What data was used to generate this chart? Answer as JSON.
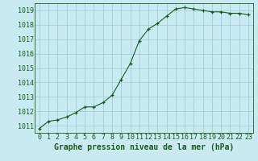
{
  "x": [
    0,
    1,
    2,
    3,
    4,
    5,
    6,
    7,
    8,
    9,
    10,
    11,
    12,
    13,
    14,
    15,
    16,
    17,
    18,
    19,
    20,
    21,
    22,
    23
  ],
  "y": [
    1010.8,
    1011.3,
    1011.4,
    1011.6,
    1011.9,
    1012.3,
    1012.3,
    1012.6,
    1013.1,
    1014.2,
    1015.3,
    1016.9,
    1017.7,
    1018.1,
    1018.6,
    1019.1,
    1019.2,
    1019.1,
    1019.0,
    1018.9,
    1018.9,
    1018.8,
    1018.8,
    1018.7
  ],
  "xlim": [
    -0.5,
    23.5
  ],
  "ylim": [
    1010.5,
    1019.5
  ],
  "yticks": [
    1011,
    1012,
    1013,
    1014,
    1015,
    1016,
    1017,
    1018,
    1019
  ],
  "xticks": [
    0,
    1,
    2,
    3,
    4,
    5,
    6,
    7,
    8,
    9,
    10,
    11,
    12,
    13,
    14,
    15,
    16,
    17,
    18,
    19,
    20,
    21,
    22,
    23
  ],
  "xlabel": "Graphe pression niveau de la mer (hPa)",
  "line_color": "#1a5c1a",
  "marker": "+",
  "bg_color": "#c8eaf0",
  "grid_color": "#a0c8d8",
  "text_color": "#1a5c1a",
  "xlabel_fontsize": 7,
  "tick_fontsize": 6
}
